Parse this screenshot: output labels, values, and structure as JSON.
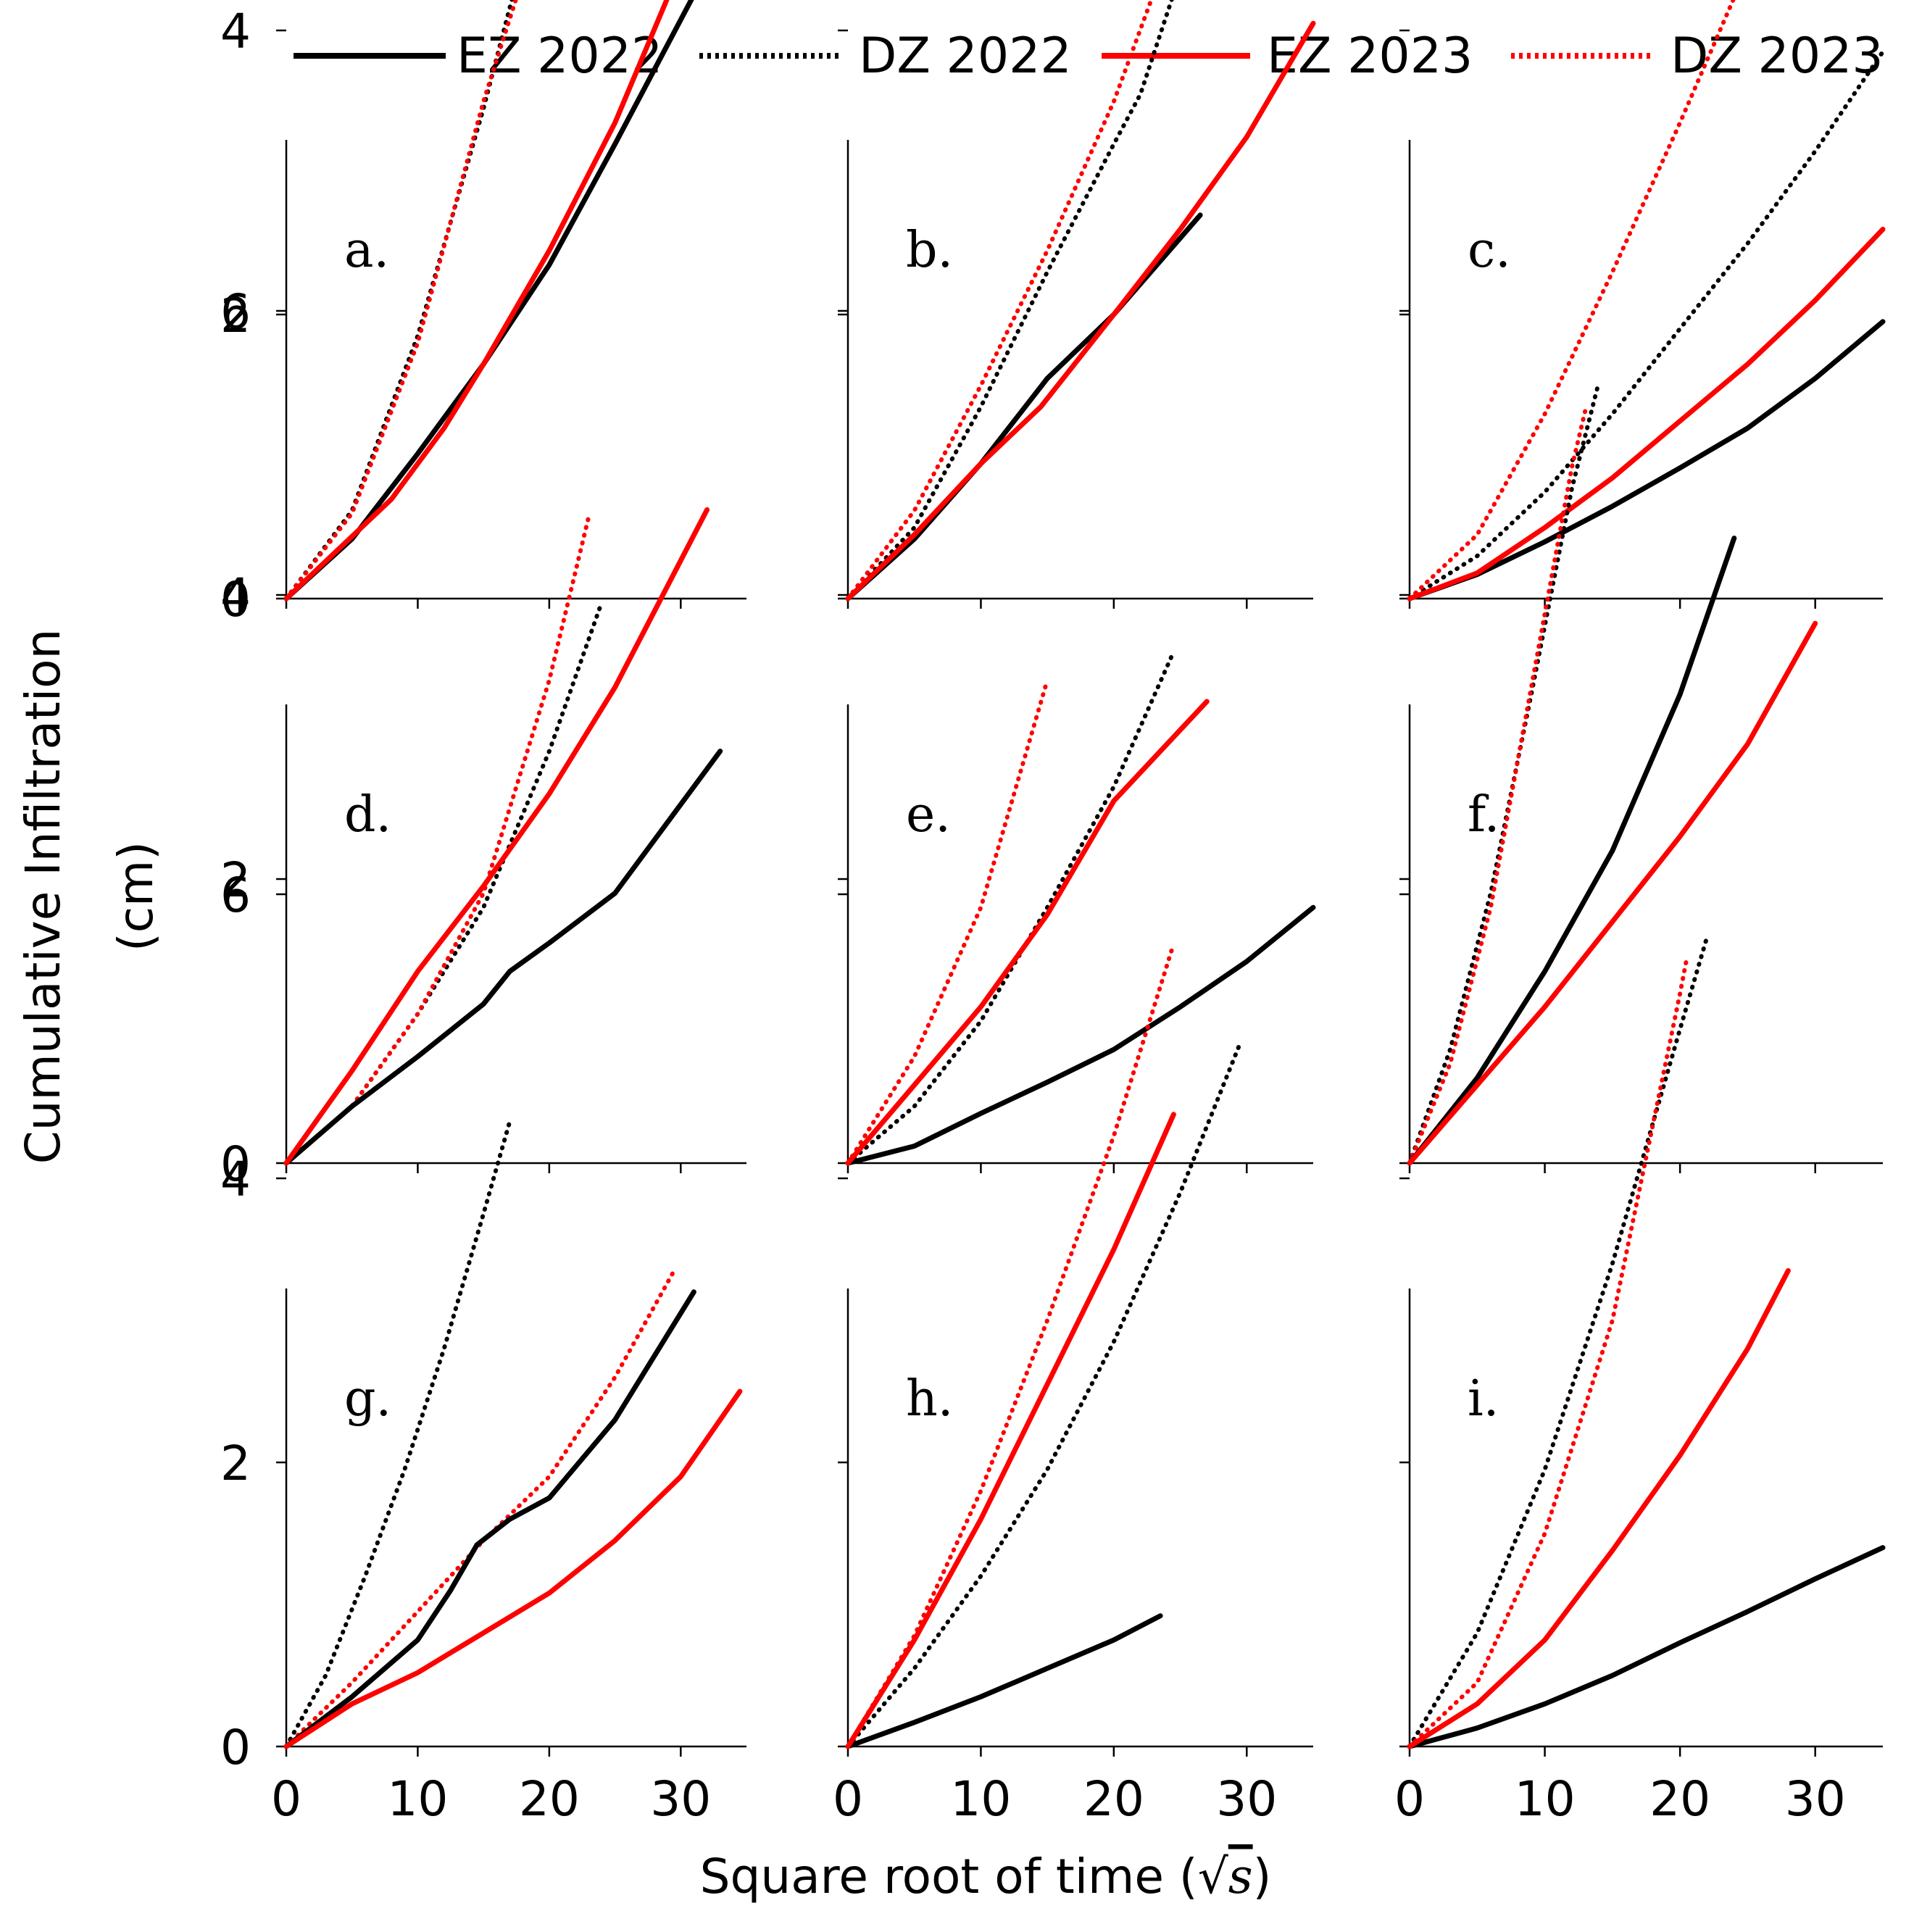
{
  "figure": {
    "ylabel_line1": "Cumulative Infiltration",
    "ylabel_line2": "(cm)",
    "xlabel_text": "Square root of time (",
    "xlabel_sqrt": "√",
    "xlabel_var": "s",
    "xlabel_close": ")"
  },
  "legend": [
    {
      "label": "EZ 2022",
      "color": "#000000",
      "style": "solid"
    },
    {
      "label": "DZ 2022",
      "color": "#000000",
      "style": "dotted"
    },
    {
      "label": "EZ 2023",
      "color": "#ff0000",
      "style": "solid"
    },
    {
      "label": "DZ 2023",
      "color": "#ff0000",
      "style": "dotted"
    }
  ],
  "chart_data": [
    {
      "panel": "a.",
      "type": "line",
      "xlim": [
        0,
        35
      ],
      "ylim": [
        0,
        6.5
      ],
      "xticks": [
        0,
        10,
        20,
        30
      ],
      "yticks": [
        0,
        2,
        4,
        6
      ],
      "show_ytick_labels": true,
      "show_xtick_labels": false,
      "series": [
        {
          "name": "EZ 2022",
          "x": [
            0,
            5,
            10,
            15,
            20,
            25,
            31
          ],
          "y": [
            0,
            0.42,
            1.02,
            1.65,
            2.35,
            3.2,
            4.25
          ]
        },
        {
          "name": "DZ 2022",
          "x": [
            0,
            5,
            10,
            15,
            19.5
          ],
          "y": [
            0,
            0.62,
            1.85,
            3.45,
            5.05
          ]
        },
        {
          "name": "EZ 2023",
          "x": [
            0,
            8,
            12,
            15,
            20,
            25,
            30
          ],
          "y": [
            0,
            0.7,
            1.2,
            1.65,
            2.45,
            3.35,
            4.45
          ]
        },
        {
          "name": "DZ 2023",
          "x": [
            0,
            5,
            10,
            15,
            20.5
          ],
          "y": [
            0,
            0.6,
            1.8,
            3.5,
            5.1
          ]
        }
      ]
    },
    {
      "panel": "b.",
      "type": "line",
      "xlim": [
        0,
        35
      ],
      "ylim": [
        0,
        6.5
      ],
      "xticks": [
        0,
        10,
        20,
        30
      ],
      "yticks": [
        0,
        2,
        4,
        6
      ],
      "show_ytick_labels": false,
      "show_xtick_labels": false,
      "series": [
        {
          "name": "EZ 2022",
          "x": [
            0,
            5,
            10,
            15,
            20,
            26.5
          ],
          "y": [
            0,
            0.42,
            0.95,
            1.55,
            2.0,
            2.7
          ]
        },
        {
          "name": "DZ 2022",
          "x": [
            0,
            5,
            10,
            15,
            20,
            22,
            25
          ],
          "y": [
            0,
            0.5,
            1.35,
            2.3,
            3.2,
            3.55,
            4.4
          ]
        },
        {
          "name": "EZ 2023",
          "x": [
            0,
            5,
            10,
            14.5,
            20,
            25,
            30,
            35
          ],
          "y": [
            0,
            0.45,
            0.95,
            1.35,
            2.0,
            2.6,
            3.25,
            4.05
          ]
        },
        {
          "name": "DZ 2023",
          "x": [
            0,
            5,
            10,
            15,
            20,
            26.5
          ],
          "y": [
            0,
            0.62,
            1.5,
            2.45,
            3.5,
            5.15
          ]
        }
      ]
    },
    {
      "panel": "c.",
      "type": "line",
      "xlim": [
        0,
        35
      ],
      "ylim": [
        0,
        6.5
      ],
      "xticks": [
        0,
        10,
        20,
        30
      ],
      "yticks": [
        0,
        2,
        4,
        6
      ],
      "show_ytick_labels": false,
      "show_xtick_labels": false,
      "series": [
        {
          "name": "EZ 2022",
          "x": [
            0,
            5,
            10,
            15,
            20,
            25,
            30,
            35
          ],
          "y": [
            0,
            0.17,
            0.4,
            0.65,
            0.92,
            1.2,
            1.55,
            1.95
          ]
        },
        {
          "name": "DZ 2022",
          "x": [
            0,
            5,
            10,
            15,
            20,
            25,
            30,
            35
          ],
          "y": [
            0,
            0.3,
            0.75,
            1.3,
            1.9,
            2.5,
            3.15,
            3.85
          ]
        },
        {
          "name": "EZ 2023",
          "x": [
            0,
            5,
            10,
            15,
            20,
            25,
            30,
            35
          ],
          "y": [
            0,
            0.18,
            0.5,
            0.85,
            1.25,
            1.65,
            2.1,
            2.6
          ]
        },
        {
          "name": "DZ 2023",
          "x": [
            0,
            5,
            10,
            15,
            20,
            25,
            29.5
          ],
          "y": [
            0,
            0.45,
            1.3,
            2.3,
            3.35,
            4.45,
            5.35
          ]
        }
      ]
    },
    {
      "panel": "d.",
      "type": "line",
      "xlim": [
        0,
        35
      ],
      "ylim": [
        0,
        6.5
      ],
      "xticks": [
        0,
        10,
        20,
        30
      ],
      "yticks": [
        0,
        2,
        4,
        6
      ],
      "show_ytick_labels": true,
      "show_xtick_labels": false,
      "series": [
        {
          "name": "EZ 2022",
          "x": [
            0,
            5,
            10,
            15,
            17,
            20,
            25,
            33
          ],
          "y": [
            0,
            0.4,
            0.75,
            1.12,
            1.35,
            1.55,
            1.9,
            2.9
          ]
        },
        {
          "name": "DZ 2022",
          "x": [
            0,
            5,
            10,
            15,
            20,
            24
          ],
          "y": [
            0,
            0.4,
            1.05,
            1.8,
            2.9,
            3.95
          ]
        },
        {
          "name": "EZ 2023",
          "x": [
            0,
            5,
            10,
            15,
            20,
            25,
            32
          ],
          "y": [
            0,
            0.65,
            1.35,
            1.95,
            2.6,
            3.35,
            4.6
          ]
        },
        {
          "name": "DZ 2023",
          "x": [
            0,
            5,
            10,
            15,
            20,
            23
          ],
          "y": [
            0,
            0.4,
            1.05,
            1.9,
            3.4,
            4.55
          ]
        }
      ]
    },
    {
      "panel": "e.",
      "type": "line",
      "xlim": [
        0,
        35
      ],
      "ylim": [
        0,
        6.5
      ],
      "xticks": [
        0,
        10,
        20,
        30
      ],
      "yticks": [
        0,
        2,
        4,
        6
      ],
      "show_ytick_labels": false,
      "show_xtick_labels": false,
      "series": [
        {
          "name": "EZ 2022",
          "x": [
            0,
            5,
            10,
            15,
            20,
            25,
            30,
            35
          ],
          "y": [
            0,
            0.12,
            0.35,
            0.57,
            0.8,
            1.1,
            1.42,
            1.8
          ]
        },
        {
          "name": "DZ 2022",
          "x": [
            0,
            5,
            10,
            15,
            20,
            24.5
          ],
          "y": [
            0,
            0.4,
            1.0,
            1.8,
            2.65,
            3.6
          ]
        },
        {
          "name": "EZ 2023",
          "x": [
            0,
            5,
            10,
            15,
            20,
            25,
            27
          ],
          "y": [
            0,
            0.55,
            1.1,
            1.75,
            2.55,
            3.05,
            3.25
          ]
        },
        {
          "name": "DZ 2023",
          "x": [
            0,
            5,
            10,
            15
          ],
          "y": [
            0,
            0.75,
            1.8,
            3.4
          ]
        }
      ]
    },
    {
      "panel": "f.",
      "type": "line",
      "xlim": [
        0,
        35
      ],
      "ylim": [
        0,
        6.5
      ],
      "xticks": [
        0,
        10,
        20,
        30
      ],
      "yticks": [
        0,
        2,
        4,
        6
      ],
      "show_ytick_labels": false,
      "show_xtick_labels": false,
      "series": [
        {
          "name": "EZ 2022",
          "x": [
            0,
            5,
            10,
            15,
            20,
            24
          ],
          "y": [
            0,
            0.6,
            1.35,
            2.2,
            3.3,
            4.4
          ]
        },
        {
          "name": "DZ 2022",
          "x": [
            0,
            3,
            6,
            9,
            12,
            14
          ],
          "y": [
            0,
            0.8,
            1.9,
            3.3,
            4.75,
            5.5
          ]
        },
        {
          "name": "EZ 2023",
          "x": [
            0,
            5,
            10,
            15,
            20,
            25,
            30
          ],
          "y": [
            0,
            0.55,
            1.1,
            1.7,
            2.3,
            2.95,
            3.8
          ]
        },
        {
          "name": "DZ 2023",
          "x": [
            0,
            3,
            6,
            9,
            12,
            13
          ],
          "y": [
            0,
            0.7,
            1.8,
            3.35,
            4.9,
            5.3
          ]
        }
      ]
    },
    {
      "panel": "g.",
      "type": "line",
      "xlim": [
        0,
        35
      ],
      "ylim": [
        0,
        6.5
      ],
      "xticks": [
        0,
        10,
        20,
        30
      ],
      "yticks": [
        0,
        2,
        4,
        6
      ],
      "show_ytick_labels": true,
      "show_xtick_labels": true,
      "series": [
        {
          "name": "EZ 2022",
          "x": [
            0,
            5,
            10,
            12.5,
            14.5,
            17,
            20,
            25,
            31
          ],
          "y": [
            0,
            0.35,
            0.75,
            1.1,
            1.42,
            1.6,
            1.75,
            2.3,
            3.2
          ]
        },
        {
          "name": "DZ 2022",
          "x": [
            0,
            3,
            6,
            9,
            12,
            15,
            17
          ],
          "y": [
            0,
            0.5,
            1.2,
            1.95,
            2.8,
            3.75,
            4.4
          ]
        },
        {
          "name": "EZ 2023",
          "x": [
            0,
            5,
            10,
            15,
            20,
            25,
            30,
            34.5
          ],
          "y": [
            0,
            0.3,
            0.52,
            0.8,
            1.08,
            1.45,
            1.9,
            2.5
          ]
        },
        {
          "name": "DZ 2023",
          "x": [
            0,
            5,
            10,
            15,
            20,
            25,
            29.5
          ],
          "y": [
            0,
            0.45,
            0.95,
            1.45,
            1.9,
            2.6,
            3.35
          ]
        }
      ]
    },
    {
      "panel": "h.",
      "type": "line",
      "xlim": [
        0,
        35
      ],
      "ylim": [
        0,
        6.5
      ],
      "xticks": [
        0,
        10,
        20,
        30
      ],
      "yticks": [
        0,
        2,
        4,
        6
      ],
      "show_ytick_labels": false,
      "show_xtick_labels": true,
      "series": [
        {
          "name": "EZ 2022",
          "x": [
            0,
            5,
            10,
            15,
            20,
            23.5
          ],
          "y": [
            0,
            0.17,
            0.35,
            0.55,
            0.75,
            0.92
          ]
        },
        {
          "name": "DZ 2022",
          "x": [
            0,
            5,
            10,
            15,
            20,
            25,
            29.5
          ],
          "y": [
            0,
            0.55,
            1.2,
            1.95,
            2.85,
            3.9,
            4.95
          ]
        },
        {
          "name": "EZ 2023",
          "x": [
            0,
            5,
            10,
            15,
            20,
            24.5
          ],
          "y": [
            0,
            0.75,
            1.6,
            2.55,
            3.5,
            4.45
          ]
        },
        {
          "name": "DZ 2023",
          "x": [
            0,
            5,
            10,
            15,
            20,
            24.5
          ],
          "y": [
            0,
            0.78,
            1.8,
            3.0,
            4.3,
            5.65
          ]
        }
      ]
    },
    {
      "panel": "i.",
      "type": "line",
      "xlim": [
        0,
        35
      ],
      "ylim": [
        0,
        6.5
      ],
      "xticks": [
        0,
        10,
        20,
        30
      ],
      "yticks": [
        0,
        2,
        4,
        6
      ],
      "show_ytick_labels": false,
      "show_xtick_labels": true,
      "series": [
        {
          "name": "EZ 2022",
          "x": [
            0,
            5,
            10,
            15,
            20,
            25,
            30,
            35
          ],
          "y": [
            0,
            0.13,
            0.3,
            0.5,
            0.73,
            0.95,
            1.18,
            1.4
          ]
        },
        {
          "name": "DZ 2022",
          "x": [
            0,
            5,
            10,
            15,
            20,
            22
          ],
          "y": [
            0,
            0.8,
            1.95,
            3.4,
            5.05,
            5.7
          ]
        },
        {
          "name": "EZ 2023",
          "x": [
            0,
            5,
            10,
            15,
            20,
            25,
            28
          ],
          "y": [
            0,
            0.3,
            0.75,
            1.38,
            2.05,
            2.8,
            3.35
          ]
        },
        {
          "name": "DZ 2023",
          "x": [
            0,
            5,
            10,
            15,
            20,
            20.5
          ],
          "y": [
            0,
            0.45,
            1.5,
            3.0,
            5.3,
            5.55
          ]
        }
      ]
    }
  ]
}
